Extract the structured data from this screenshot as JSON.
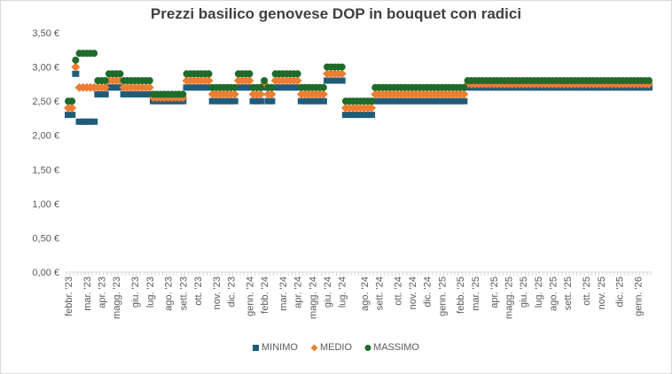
{
  "chart_data": {
    "type": "scatter",
    "title": "Prezzi basilico genovese DOP in bouquet con radici",
    "xlabel": "",
    "ylabel": "",
    "ylim": [
      0,
      3.5
    ],
    "y_ticks": [
      "0,00 €",
      "0,50 €",
      "1,00 €",
      "1,50 €",
      "2,00 €",
      "2,50 €",
      "3,00 €",
      "3,50 €"
    ],
    "y_tick_values": [
      0,
      0.5,
      1,
      1.5,
      2,
      2.5,
      3,
      3.5
    ],
    "grid": false,
    "legend_position": "bottom",
    "x_labels": [
      {
        "label": "febbr. '23",
        "week": 0
      },
      {
        "label": "mar. '23",
        "week": 5
      },
      {
        "label": "apr. '23",
        "week": 9
      },
      {
        "label": "magg. '23",
        "week": 13
      },
      {
        "label": "giu. '23",
        "week": 18
      },
      {
        "label": "lug. '23",
        "week": 22
      },
      {
        "label": "ago. '23",
        "week": 27
      },
      {
        "label": "sett. '23",
        "week": 31
      },
      {
        "label": "ott. '23",
        "week": 35
      },
      {
        "label": "nov. '23",
        "week": 40
      },
      {
        "label": "dic. '23",
        "week": 44
      },
      {
        "label": "genn. '24",
        "week": 49
      },
      {
        "label": "febb. '24",
        "week": 53
      },
      {
        "label": "mar. '24",
        "week": 58
      },
      {
        "label": "apr. '24",
        "week": 62
      },
      {
        "label": "magg. '24",
        "week": 66
      },
      {
        "label": "giu. '24",
        "week": 70
      },
      {
        "label": "lug. '24",
        "week": 74
      },
      {
        "label": "ago. '24",
        "week": 80
      },
      {
        "label": "sett. '24",
        "week": 84
      },
      {
        "label": "ott. '24",
        "week": 89
      },
      {
        "label": "nov. '24",
        "week": 93
      },
      {
        "label": "dic. '24",
        "week": 97
      },
      {
        "label": "genn. '25",
        "week": 101
      },
      {
        "label": "febb. '25",
        "week": 106
      },
      {
        "label": "mar. '25",
        "week": 110
      },
      {
        "label": "apr. '25",
        "week": 115
      },
      {
        "label": "magg. '25",
        "week": 119
      },
      {
        "label": "giu. '25",
        "week": 123
      },
      {
        "label": "lug. '25",
        "week": 127
      },
      {
        "label": "ago. '25",
        "week": 131
      },
      {
        "label": "sett. '25",
        "week": 135
      },
      {
        "label": "ott. '25",
        "week": 140
      },
      {
        "label": "nov. '25",
        "week": 144
      },
      {
        "label": "dic. '25",
        "week": 149
      },
      {
        "label": "genn. '26",
        "week": 154
      }
    ],
    "series": [
      {
        "name": "MINIMO",
        "color": "#1f5c7a",
        "marker": "square",
        "values": [
          2.3,
          2.3,
          2.9,
          2.2,
          2.2,
          2.2,
          2.2,
          2.2,
          2.6,
          2.6,
          2.6,
          2.7,
          2.7,
          2.7,
          2.7,
          2.6,
          2.6,
          2.6,
          2.6,
          2.6,
          2.6,
          2.6,
          2.6,
          2.5,
          2.5,
          2.5,
          2.5,
          2.5,
          2.5,
          2.5,
          2.5,
          2.5,
          2.7,
          2.7,
          2.7,
          2.7,
          2.7,
          2.7,
          2.7,
          2.5,
          2.5,
          2.5,
          2.5,
          2.5,
          2.5,
          2.5,
          2.7,
          2.7,
          2.7,
          2.7,
          2.5,
          2.5,
          2.5,
          2.7,
          2.5,
          2.5,
          2.7,
          2.7,
          2.7,
          2.7,
          2.7,
          2.7,
          2.7,
          2.5,
          2.5,
          2.5,
          2.5,
          2.5,
          2.5,
          2.5,
          2.8,
          2.8,
          2.8,
          2.8,
          2.8,
          2.3,
          2.3,
          2.3,
          2.3,
          2.3,
          2.3,
          2.3,
          2.3,
          2.5,
          2.5,
          2.5,
          2.5,
          2.5,
          2.5,
          2.5,
          2.5,
          2.5,
          2.5,
          2.5,
          2.5,
          2.5,
          2.5,
          2.5,
          2.5,
          2.5,
          2.5,
          2.5,
          2.5,
          2.5,
          2.5,
          2.5,
          2.5,
          2.5,
          2.7,
          2.7,
          2.7,
          2.7,
          2.7,
          2.7,
          2.7,
          2.7,
          2.7,
          2.7,
          2.7,
          2.7,
          2.7,
          2.7,
          2.7,
          2.7,
          2.7,
          2.7,
          2.7,
          2.7,
          2.7,
          2.7,
          2.7,
          2.7,
          2.7,
          2.7,
          2.7,
          2.7,
          2.7,
          2.7,
          2.7,
          2.7,
          2.7,
          2.7,
          2.7,
          2.7,
          2.7,
          2.7,
          2.7,
          2.7,
          2.7,
          2.7,
          2.7,
          2.7,
          2.7,
          2.7,
          2.7,
          2.7,
          2.7,
          2.7
        ]
      },
      {
        "name": "MEDIO",
        "color": "#ed7d31",
        "marker": "diamond",
        "values": [
          2.4,
          2.4,
          3.0,
          2.7,
          2.7,
          2.7,
          2.7,
          2.7,
          2.7,
          2.7,
          2.7,
          2.8,
          2.8,
          2.8,
          2.8,
          2.7,
          2.7,
          2.7,
          2.7,
          2.7,
          2.7,
          2.7,
          2.7,
          2.55,
          2.55,
          2.55,
          2.55,
          2.55,
          2.55,
          2.55,
          2.55,
          2.55,
          2.8,
          2.8,
          2.8,
          2.8,
          2.8,
          2.8,
          2.8,
          2.6,
          2.6,
          2.6,
          2.6,
          2.6,
          2.6,
          2.6,
          2.8,
          2.8,
          2.8,
          2.8,
          2.6,
          2.6,
          2.6,
          2.75,
          2.6,
          2.6,
          2.8,
          2.8,
          2.8,
          2.8,
          2.8,
          2.8,
          2.8,
          2.6,
          2.6,
          2.6,
          2.6,
          2.6,
          2.6,
          2.6,
          2.9,
          2.9,
          2.9,
          2.9,
          2.9,
          2.4,
          2.4,
          2.4,
          2.4,
          2.4,
          2.4,
          2.4,
          2.4,
          2.6,
          2.6,
          2.6,
          2.6,
          2.6,
          2.6,
          2.6,
          2.6,
          2.6,
          2.6,
          2.6,
          2.6,
          2.6,
          2.6,
          2.6,
          2.6,
          2.6,
          2.6,
          2.6,
          2.6,
          2.6,
          2.6,
          2.6,
          2.6,
          2.6,
          2.75,
          2.75,
          2.75,
          2.75,
          2.75,
          2.75,
          2.75,
          2.75,
          2.75,
          2.75,
          2.75,
          2.75,
          2.75,
          2.75,
          2.75,
          2.75,
          2.75,
          2.75,
          2.75,
          2.75,
          2.75,
          2.75,
          2.75,
          2.75,
          2.75,
          2.75,
          2.75,
          2.75,
          2.75,
          2.75,
          2.75,
          2.75,
          2.75,
          2.75,
          2.75,
          2.75,
          2.75,
          2.75,
          2.75,
          2.75,
          2.75,
          2.75,
          2.75,
          2.75,
          2.75,
          2.75,
          2.75,
          2.75,
          2.75,
          2.75
        ]
      },
      {
        "name": "MASSIMO",
        "color": "#1e6b2a",
        "marker": "circle",
        "values": [
          2.5,
          2.5,
          3.1,
          3.2,
          3.2,
          3.2,
          3.2,
          3.2,
          2.8,
          2.8,
          2.8,
          2.9,
          2.9,
          2.9,
          2.9,
          2.8,
          2.8,
          2.8,
          2.8,
          2.8,
          2.8,
          2.8,
          2.8,
          2.6,
          2.6,
          2.6,
          2.6,
          2.6,
          2.6,
          2.6,
          2.6,
          2.6,
          2.9,
          2.9,
          2.9,
          2.9,
          2.9,
          2.9,
          2.9,
          2.7,
          2.7,
          2.7,
          2.7,
          2.7,
          2.7,
          2.7,
          2.9,
          2.9,
          2.9,
          2.9,
          2.7,
          2.7,
          2.7,
          2.8,
          2.7,
          2.7,
          2.9,
          2.9,
          2.9,
          2.9,
          2.9,
          2.9,
          2.9,
          2.7,
          2.7,
          2.7,
          2.7,
          2.7,
          2.7,
          2.7,
          3.0,
          3.0,
          3.0,
          3.0,
          3.0,
          2.5,
          2.5,
          2.5,
          2.5,
          2.5,
          2.5,
          2.5,
          2.5,
          2.7,
          2.7,
          2.7,
          2.7,
          2.7,
          2.7,
          2.7,
          2.7,
          2.7,
          2.7,
          2.7,
          2.7,
          2.7,
          2.7,
          2.7,
          2.7,
          2.7,
          2.7,
          2.7,
          2.7,
          2.7,
          2.7,
          2.7,
          2.7,
          2.7,
          2.8,
          2.8,
          2.8,
          2.8,
          2.8,
          2.8,
          2.8,
          2.8,
          2.8,
          2.8,
          2.8,
          2.8,
          2.8,
          2.8,
          2.8,
          2.8,
          2.8,
          2.8,
          2.8,
          2.8,
          2.8,
          2.8,
          2.8,
          2.8,
          2.8,
          2.8,
          2.8,
          2.8,
          2.8,
          2.8,
          2.8,
          2.8,
          2.8,
          2.8,
          2.8,
          2.8,
          2.8,
          2.8,
          2.8,
          2.8,
          2.8,
          2.8,
          2.8,
          2.8,
          2.8,
          2.8,
          2.8,
          2.8,
          2.8,
          2.8
        ]
      }
    ]
  }
}
